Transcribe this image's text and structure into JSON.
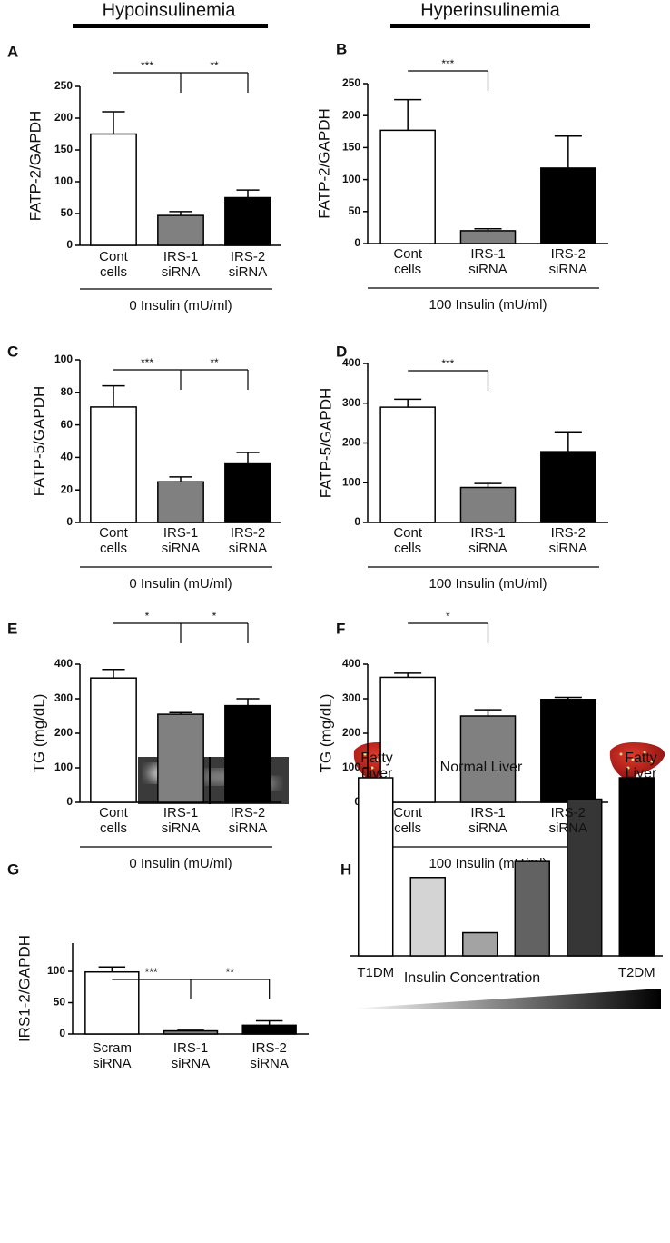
{
  "headers": [
    "Hypoinsulinemia",
    "Hyperinsulinemia"
  ],
  "chart_data": [
    {
      "type": "bar",
      "panel": "A",
      "ylabel": "FATP-2/GAPDH",
      "categories": [
        "Cont cells",
        "IRS-1 siRNA",
        "IRS-2 siRNA"
      ],
      "values": [
        175,
        47,
        75
      ],
      "errors": [
        35,
        6,
        12
      ],
      "colors": [
        "#ffffff",
        "#808080",
        "#000000"
      ],
      "ylim": [
        0,
        250
      ],
      "yticks": [
        0,
        50,
        100,
        150,
        200,
        250
      ],
      "significance": [
        {
          "from": 0,
          "to": 1,
          "label": "***"
        },
        {
          "from": 1,
          "to": 2,
          "label": "**"
        }
      ],
      "group_label": "0 Insulin (mU/ml)"
    },
    {
      "type": "bar",
      "panel": "B",
      "ylabel": "FATP-2/GAPDH",
      "categories": [
        "Cont cells",
        "IRS-1 siRNA",
        "IRS-2 siRNA"
      ],
      "values": [
        177,
        20,
        118
      ],
      "errors": [
        48,
        3,
        50
      ],
      "colors": [
        "#ffffff",
        "#808080",
        "#000000"
      ],
      "ylim": [
        0,
        250
      ],
      "yticks": [
        0,
        50,
        100,
        150,
        200,
        250
      ],
      "significance": [
        {
          "from": 0,
          "to": 1,
          "label": "***"
        }
      ],
      "group_label": "100 Insulin (mU/ml)"
    },
    {
      "type": "bar",
      "panel": "C",
      "ylabel": "FATP-5/GAPDH",
      "categories": [
        "Cont cells",
        "IRS-1 siRNA",
        "IRS-2 siRNA"
      ],
      "values": [
        71,
        25,
        36
      ],
      "errors": [
        13,
        3,
        7
      ],
      "colors": [
        "#ffffff",
        "#808080",
        "#000000"
      ],
      "ylim": [
        0,
        100
      ],
      "yticks": [
        0,
        20,
        40,
        60,
        80,
        100
      ],
      "significance": [
        {
          "from": 0,
          "to": 1,
          "label": "***"
        },
        {
          "from": 1,
          "to": 2,
          "label": "**"
        }
      ],
      "group_label": "0 Insulin (mU/ml)"
    },
    {
      "type": "bar",
      "panel": "D",
      "ylabel": "FATP-5/GAPDH",
      "categories": [
        "Cont cells",
        "IRS-1 siRNA",
        "IRS-2 siRNA"
      ],
      "values": [
        290,
        88,
        178
      ],
      "errors": [
        20,
        10,
        50
      ],
      "colors": [
        "#ffffff",
        "#808080",
        "#000000"
      ],
      "ylim": [
        0,
        400
      ],
      "yticks": [
        0,
        100,
        200,
        300,
        400
      ],
      "significance": [
        {
          "from": 0,
          "to": 1,
          "label": "***"
        }
      ],
      "group_label": "100 Insulin (mU/ml)"
    },
    {
      "type": "bar",
      "panel": "E",
      "ylabel": "TG  (mg/dL)",
      "categories": [
        "Cont cells",
        "IRS-1 siRNA",
        "IRS-2 siRNA"
      ],
      "values": [
        360,
        255,
        280
      ],
      "errors": [
        25,
        5,
        20
      ],
      "colors": [
        "#ffffff",
        "#808080",
        "#000000"
      ],
      "ylim": [
        0,
        400
      ],
      "yticks": [
        0,
        100,
        200,
        300,
        400
      ],
      "significance": [
        {
          "from": 0,
          "to": 1,
          "label": "*"
        },
        {
          "from": 1,
          "to": 2,
          "label": "*"
        }
      ],
      "group_label": "0 Insulin (mU/ml)"
    },
    {
      "type": "bar",
      "panel": "F",
      "ylabel": "TG  (mg/dL)",
      "categories": [
        "Cont cells",
        "IRS-1 siRNA",
        "IRS-2 siRNA"
      ],
      "values": [
        362,
        250,
        298
      ],
      "errors": [
        12,
        18,
        6
      ],
      "colors": [
        "#ffffff",
        "#808080",
        "#000000"
      ],
      "ylim": [
        0,
        400
      ],
      "yticks": [
        0,
        100,
        200,
        300,
        400
      ],
      "significance": [
        {
          "from": 0,
          "to": 1,
          "label": "*"
        }
      ],
      "group_label": "100 Insulin (mU/ml)"
    },
    {
      "type": "bar",
      "panel": "G",
      "ylabel": "IRS1-2/GAPDH",
      "categories": [
        "Scram siRNA",
        "IRS-1 siRNA",
        "IRS-2 siRNA"
      ],
      "values": [
        99,
        5,
        14
      ],
      "errors": [
        8,
        1,
        7
      ],
      "colors": [
        "#ffffff",
        "#808080",
        "#000000"
      ],
      "ylim": [
        0,
        145
      ],
      "yticks": [
        0,
        50,
        100
      ],
      "significance": [
        {
          "from": 0,
          "to": 1,
          "label": "***"
        },
        {
          "from": 1,
          "to": 2,
          "label": "**"
        }
      ]
    },
    {
      "type": "bar",
      "panel": "H",
      "categories": [
        "T1DM",
        null,
        null,
        null,
        null,
        "T2DM"
      ],
      "values": [
        100,
        44,
        13,
        53,
        88,
        100
      ],
      "colors": [
        "#ffffff",
        "#d4d4d4",
        "#a3a3a3",
        "#626262",
        "#363636",
        "#000000"
      ],
      "ylim": [
        0,
        100
      ],
      "xlabel": "Insulin Concentration",
      "annotations": [
        "Fatty Liver",
        "Normal Liver",
        "Fatty Liver"
      ]
    }
  ]
}
